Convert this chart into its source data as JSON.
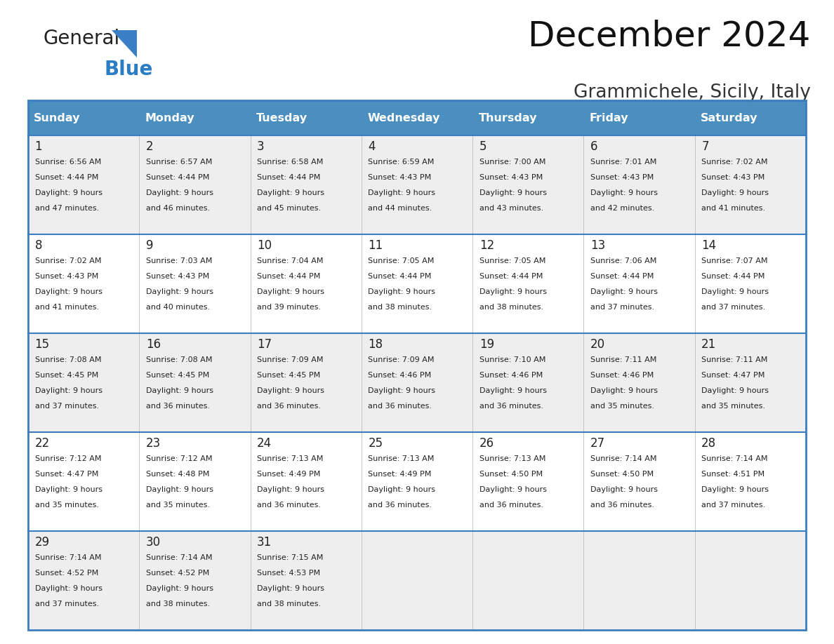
{
  "title": "December 2024",
  "subtitle": "Grammichele, Sicily, Italy",
  "header_color": "#4A8FC0",
  "header_text_color": "#FFFFFF",
  "weekdays": [
    "Sunday",
    "Monday",
    "Tuesday",
    "Wednesday",
    "Thursday",
    "Friday",
    "Saturday"
  ],
  "row_bg_colors": [
    "#EEEEEE",
    "#FFFFFF",
    "#EEEEEE",
    "#FFFFFF",
    "#EEEEEE"
  ],
  "border_color": "#3A7DC0",
  "text_color": "#222222",
  "day_data": [
    {
      "day": 1,
      "col": 0,
      "row": 0,
      "sunrise": "6:56 AM",
      "sunset": "4:44 PM",
      "daylight_min": "47"
    },
    {
      "day": 2,
      "col": 1,
      "row": 0,
      "sunrise": "6:57 AM",
      "sunset": "4:44 PM",
      "daylight_min": "46"
    },
    {
      "day": 3,
      "col": 2,
      "row": 0,
      "sunrise": "6:58 AM",
      "sunset": "4:44 PM",
      "daylight_min": "45"
    },
    {
      "day": 4,
      "col": 3,
      "row": 0,
      "sunrise": "6:59 AM",
      "sunset": "4:43 PM",
      "daylight_min": "44"
    },
    {
      "day": 5,
      "col": 4,
      "row": 0,
      "sunrise": "7:00 AM",
      "sunset": "4:43 PM",
      "daylight_min": "43"
    },
    {
      "day": 6,
      "col": 5,
      "row": 0,
      "sunrise": "7:01 AM",
      "sunset": "4:43 PM",
      "daylight_min": "42"
    },
    {
      "day": 7,
      "col": 6,
      "row": 0,
      "sunrise": "7:02 AM",
      "sunset": "4:43 PM",
      "daylight_min": "41"
    },
    {
      "day": 8,
      "col": 0,
      "row": 1,
      "sunrise": "7:02 AM",
      "sunset": "4:43 PM",
      "daylight_min": "41"
    },
    {
      "day": 9,
      "col": 1,
      "row": 1,
      "sunrise": "7:03 AM",
      "sunset": "4:43 PM",
      "daylight_min": "40"
    },
    {
      "day": 10,
      "col": 2,
      "row": 1,
      "sunrise": "7:04 AM",
      "sunset": "4:44 PM",
      "daylight_min": "39"
    },
    {
      "day": 11,
      "col": 3,
      "row": 1,
      "sunrise": "7:05 AM",
      "sunset": "4:44 PM",
      "daylight_min": "38"
    },
    {
      "day": 12,
      "col": 4,
      "row": 1,
      "sunrise": "7:05 AM",
      "sunset": "4:44 PM",
      "daylight_min": "38"
    },
    {
      "day": 13,
      "col": 5,
      "row": 1,
      "sunrise": "7:06 AM",
      "sunset": "4:44 PM",
      "daylight_min": "37"
    },
    {
      "day": 14,
      "col": 6,
      "row": 1,
      "sunrise": "7:07 AM",
      "sunset": "4:44 PM",
      "daylight_min": "37"
    },
    {
      "day": 15,
      "col": 0,
      "row": 2,
      "sunrise": "7:08 AM",
      "sunset": "4:45 PM",
      "daylight_min": "37"
    },
    {
      "day": 16,
      "col": 1,
      "row": 2,
      "sunrise": "7:08 AM",
      "sunset": "4:45 PM",
      "daylight_min": "36"
    },
    {
      "day": 17,
      "col": 2,
      "row": 2,
      "sunrise": "7:09 AM",
      "sunset": "4:45 PM",
      "daylight_min": "36"
    },
    {
      "day": 18,
      "col": 3,
      "row": 2,
      "sunrise": "7:09 AM",
      "sunset": "4:46 PM",
      "daylight_min": "36"
    },
    {
      "day": 19,
      "col": 4,
      "row": 2,
      "sunrise": "7:10 AM",
      "sunset": "4:46 PM",
      "daylight_min": "36"
    },
    {
      "day": 20,
      "col": 5,
      "row": 2,
      "sunrise": "7:11 AM",
      "sunset": "4:46 PM",
      "daylight_min": "35"
    },
    {
      "day": 21,
      "col": 6,
      "row": 2,
      "sunrise": "7:11 AM",
      "sunset": "4:47 PM",
      "daylight_min": "35"
    },
    {
      "day": 22,
      "col": 0,
      "row": 3,
      "sunrise": "7:12 AM",
      "sunset": "4:47 PM",
      "daylight_min": "35"
    },
    {
      "day": 23,
      "col": 1,
      "row": 3,
      "sunrise": "7:12 AM",
      "sunset": "4:48 PM",
      "daylight_min": "35"
    },
    {
      "day": 24,
      "col": 2,
      "row": 3,
      "sunrise": "7:13 AM",
      "sunset": "4:49 PM",
      "daylight_min": "36"
    },
    {
      "day": 25,
      "col": 3,
      "row": 3,
      "sunrise": "7:13 AM",
      "sunset": "4:49 PM",
      "daylight_min": "36"
    },
    {
      "day": 26,
      "col": 4,
      "row": 3,
      "sunrise": "7:13 AM",
      "sunset": "4:50 PM",
      "daylight_min": "36"
    },
    {
      "day": 27,
      "col": 5,
      "row": 3,
      "sunrise": "7:14 AM",
      "sunset": "4:50 PM",
      "daylight_min": "36"
    },
    {
      "day": 28,
      "col": 6,
      "row": 3,
      "sunrise": "7:14 AM",
      "sunset": "4:51 PM",
      "daylight_min": "37"
    },
    {
      "day": 29,
      "col": 0,
      "row": 4,
      "sunrise": "7:14 AM",
      "sunset": "4:52 PM",
      "daylight_min": "37"
    },
    {
      "day": 30,
      "col": 1,
      "row": 4,
      "sunrise": "7:14 AM",
      "sunset": "4:52 PM",
      "daylight_min": "38"
    },
    {
      "day": 31,
      "col": 2,
      "row": 4,
      "sunrise": "7:15 AM",
      "sunset": "4:53 PM",
      "daylight_min": "38"
    }
  ],
  "num_rows": 5,
  "num_cols": 7,
  "figsize": [
    11.88,
    9.18
  ],
  "dpi": 100
}
